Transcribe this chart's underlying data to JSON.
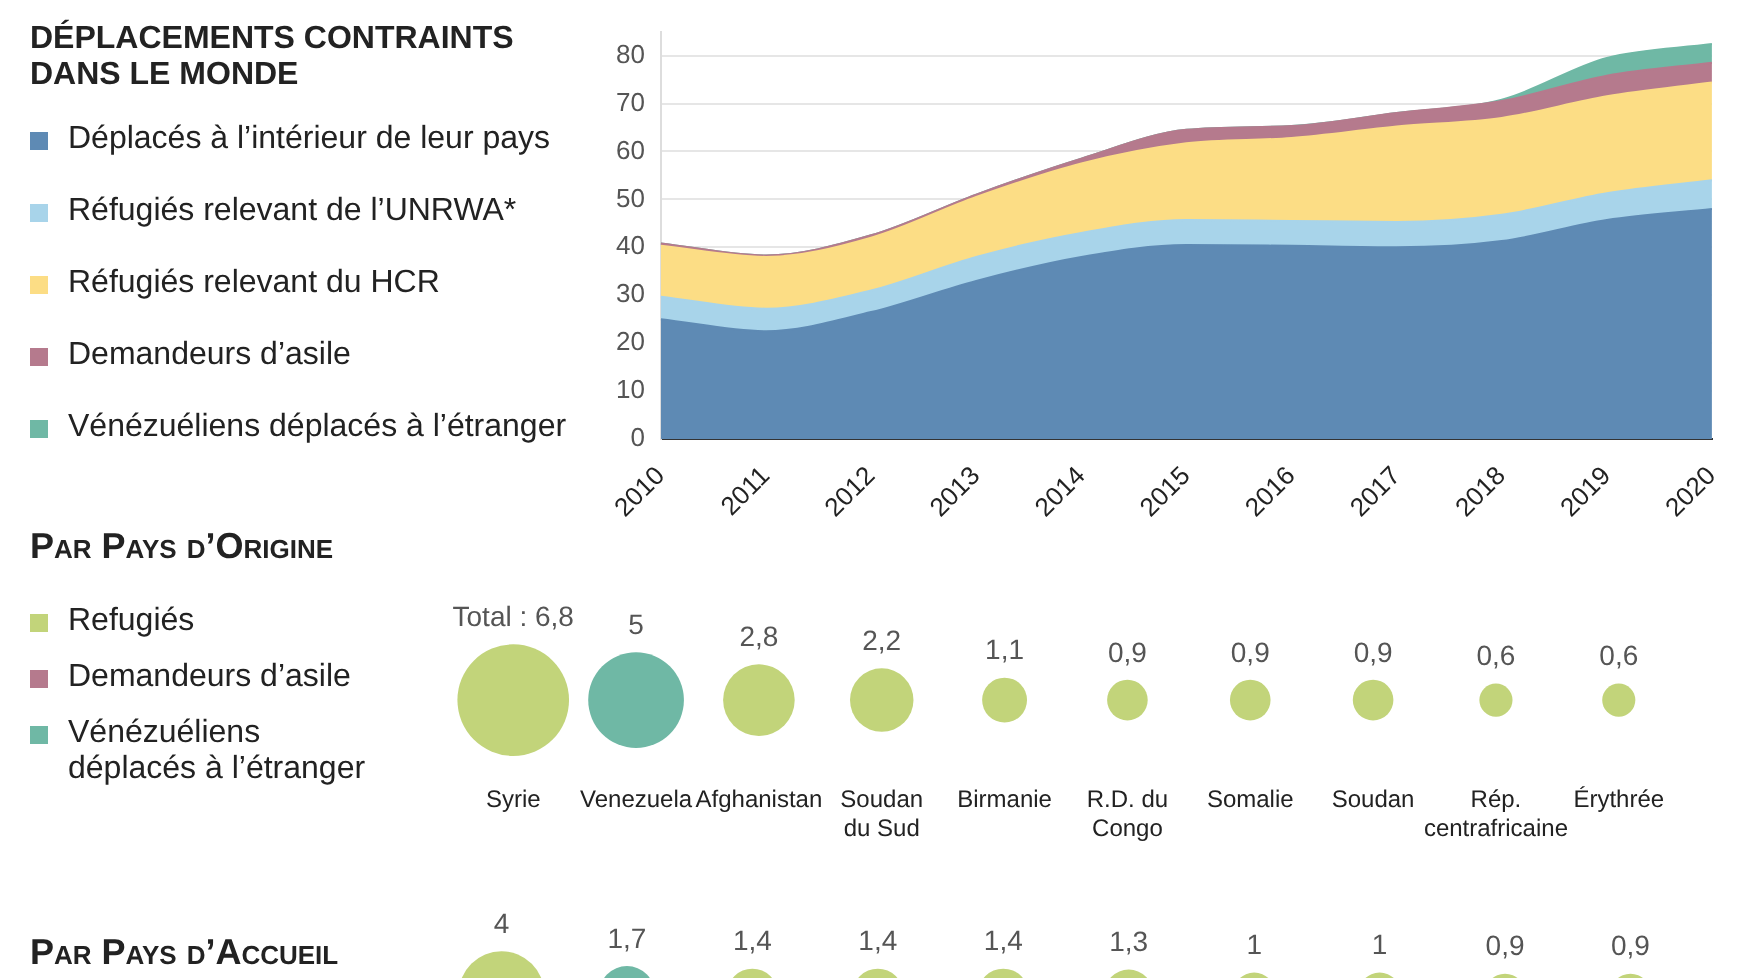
{
  "chart_data": [
    {
      "type": "area",
      "title": "DÉPLACEMENTS CONTRAINTS DANS LE MONDE",
      "stacked": true,
      "categories": [
        "2010",
        "2011",
        "2012",
        "2013",
        "2014",
        "2015",
        "2016",
        "2017",
        "2018",
        "2019",
        "2020"
      ],
      "series": [
        {
          "name": "Déplacés à l’intérieur de leur pays",
          "color": "#5e8ab4",
          "values": [
            25,
            22.5,
            26.5,
            33,
            38,
            40.5,
            40.3,
            40,
            41.3,
            45.7,
            48
          ]
        },
        {
          "name": "Réfugiés relevant de l’UNRWA*",
          "color": "#a8d4ea",
          "values": [
            4.7,
            4.7,
            4.5,
            5,
            5,
            5.2,
            5.2,
            5.3,
            5.5,
            5.6,
            6
          ]
        },
        {
          "name": "Réfugiés relevant du HCR",
          "color": "#fcdd85",
          "values": [
            10.6,
            10.8,
            11,
            12.5,
            14.5,
            16,
            17.3,
            19.9,
            20.2,
            20.2,
            20.4
          ]
        },
        {
          "name": "Demandeurs d’asile",
          "color": "#b57a8d",
          "values": [
            0.5,
            0.3,
            0.5,
            0.5,
            1,
            2.8,
            2.5,
            2.8,
            3.5,
            4.3,
            4.1
          ]
        },
        {
          "name": "Vénézuéliens déplacés à l’étranger",
          "color": "#6fb8a5",
          "values": [
            0,
            0,
            0,
            0,
            0,
            0,
            0,
            0,
            0.3,
            3.7,
            3.9
          ]
        }
      ],
      "ylim": [
        0,
        85
      ],
      "yticks": [
        0,
        10,
        20,
        30,
        40,
        50,
        60,
        70,
        80
      ],
      "grid": "y",
      "legend": "left"
    },
    {
      "type": "other",
      "title": "Par Pays d’Origine",
      "categories": [
        "Syrie",
        "Venezuela",
        "Afghanistan",
        "Soudan du Sud",
        "Birmanie",
        "R.D. du Congo",
        "Somalie",
        "Soudan",
        "Rép. centrafricaine",
        "Érythrée"
      ],
      "series": [
        {
          "name": "Refugiés",
          "color": "#c2d47a",
          "values": [
            6.8,
            null,
            2.8,
            2.2,
            1.1,
            0.9,
            0.9,
            0.9,
            0.6,
            0.6
          ],
          "value_labels": [
            "Total : 6,8",
            null,
            "2,8",
            "2,2",
            "1,1",
            "0,9",
            "0,9",
            "0,9",
            "0,6",
            "0,6"
          ]
        },
        {
          "name": "Demandeurs d’asile",
          "color": "#b57a8d",
          "values": [
            null,
            null,
            null,
            null,
            null,
            null,
            null,
            null,
            null,
            null
          ]
        },
        {
          "name": "Vénézuéliens déplacés à l’étranger",
          "color": "#6fb8a5",
          "values": [
            null,
            5,
            null,
            null,
            null,
            null,
            null,
            null,
            null,
            null
          ],
          "value_labels": [
            null,
            "5",
            null,
            null,
            null,
            null,
            null,
            null,
            null,
            null
          ]
        }
      ],
      "legend": "left"
    },
    {
      "type": "other",
      "title": "Par Pays d’Accueil",
      "categories": [
        null,
        null,
        null,
        null,
        null,
        null,
        null,
        null,
        null,
        null
      ],
      "values": [
        4,
        1.7,
        1.4,
        1.4,
        1.4,
        1.3,
        1,
        1,
        0.9,
        0.9
      ],
      "colors": [
        "#c2d47a",
        "#6fb8a5",
        "#c2d47a",
        "#c2d47a",
        "#c2d47a",
        "#c2d47a",
        "#c2d47a",
        "#c2d47a",
        "#c2d47a",
        "#c2d47a"
      ],
      "value_labels": [
        "4",
        "1,7",
        "1,4",
        "1,4",
        "1,4",
        "1,3",
        "1",
        "1",
        "0,9",
        "0,9"
      ]
    }
  ]
}
